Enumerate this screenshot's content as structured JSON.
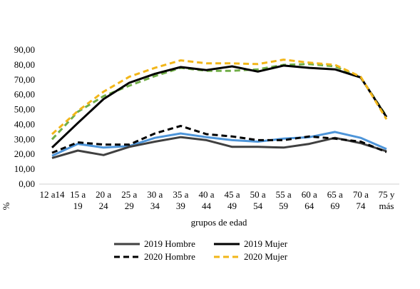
{
  "chart_data": {
    "type": "line",
    "xlabel": "grupos de edad",
    "ylabel": "%",
    "ylim": [
      0,
      90
    ],
    "yticks": [
      "0,00",
      "10,00",
      "20,00",
      "30,00",
      "40,00",
      "50,00",
      "60,00",
      "70,00",
      "80,00",
      "90,00"
    ],
    "grid": false,
    "legend_position": "bottom",
    "categories": [
      [
        "12 a14",
        ""
      ],
      [
        "15 a",
        "19"
      ],
      [
        "20 a",
        "24"
      ],
      [
        "25 a",
        "29"
      ],
      [
        "30 a",
        "34"
      ],
      [
        "35 a",
        "39"
      ],
      [
        "40 a",
        "44"
      ],
      [
        "45 a",
        "49"
      ],
      [
        "50 a",
        "54"
      ],
      [
        "55 a",
        "59"
      ],
      [
        "60 a",
        "64"
      ],
      [
        "65 a",
        "69"
      ],
      [
        "70 a",
        "74"
      ],
      [
        "75 y",
        "más"
      ]
    ],
    "series": [
      {
        "name": "2019 Hombre",
        "color": "#404040",
        "dash": "solid",
        "in_legend": true,
        "values": [
          17.5,
          22.5,
          19.5,
          25,
          28.5,
          31.5,
          29.5,
          25,
          25,
          24.5,
          27,
          31,
          27.5,
          22
        ]
      },
      {
        "name": "2019 Mujer",
        "color": "#000000",
        "dash": "solid",
        "in_legend": true,
        "values": [
          24.5,
          41,
          57,
          68,
          74,
          78.5,
          76.5,
          79,
          75.5,
          79.5,
          78,
          77,
          71.5,
          45
        ]
      },
      {
        "name": "2020 Hombre",
        "color": "#000000",
        "dash": "dashed",
        "in_legend": true,
        "values": [
          21,
          28,
          26.5,
          26.5,
          34,
          39,
          33.5,
          32,
          29.5,
          29.5,
          32,
          30.5,
          28.5,
          21.5
        ]
      },
      {
        "name": "2020 Mujer",
        "color": "#F2B619",
        "dash": "dashed",
        "in_legend": true,
        "values": [
          33.5,
          49,
          62,
          72,
          78,
          83,
          81,
          81,
          80.5,
          83.5,
          81.5,
          80,
          72,
          43.5
        ]
      },
      {
        "color": "#4E95D9",
        "dash": "solid",
        "in_legend": false,
        "values": [
          19,
          27,
          24.5,
          25.5,
          31,
          34,
          31.5,
          29.5,
          28.5,
          30.5,
          31.5,
          35,
          31,
          23.5
        ]
      },
      {
        "color": "#70AD47",
        "dash": "dashed",
        "in_legend": false,
        "values": [
          30,
          48.5,
          59,
          66,
          72.5,
          78,
          76,
          76,
          77,
          80,
          80.5,
          79,
          71.5,
          45.5
        ]
      }
    ]
  }
}
